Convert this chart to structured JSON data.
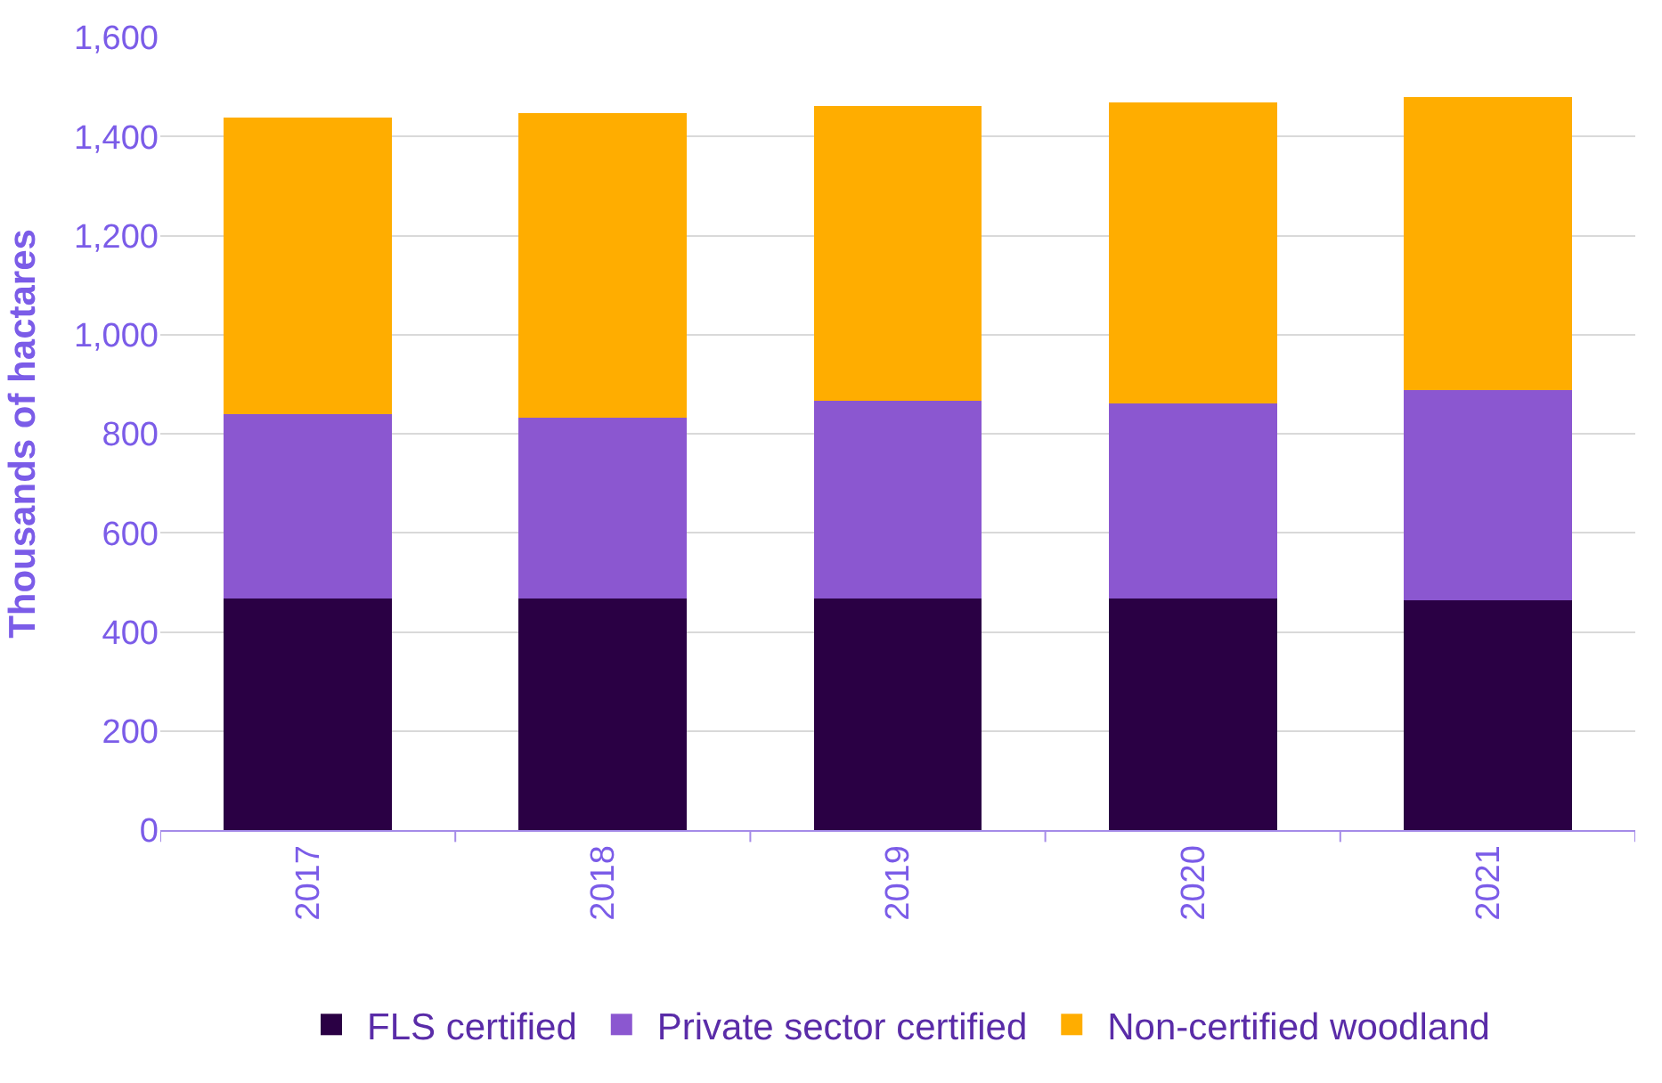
{
  "chart_data": {
    "type": "bar",
    "stacked": true,
    "ylabel": "Thousands of hactares",
    "categories": [
      "2017",
      "2018",
      "2019",
      "2020",
      "2021"
    ],
    "series": [
      {
        "name": "FLS certified",
        "color": "#2a0044",
        "values": [
          468,
          468,
          468,
          468,
          464
        ]
      },
      {
        "name": "Private sector certified",
        "color": "#8b57d0",
        "values": [
          372,
          365,
          398,
          394,
          424
        ]
      },
      {
        "name": "Non-certified woodland",
        "color": "#ffad00",
        "values": [
          599,
          614,
          595,
          607,
          591
        ]
      }
    ],
    "ylim": [
      0,
      1600
    ],
    "yticks": [
      0,
      {
        "value": 200,
        "label": "200"
      },
      {
        "value": 400,
        "label": "400"
      },
      {
        "value": 600,
        "label": "600"
      },
      {
        "value": 800,
        "label": "800"
      },
      {
        "value": 1000,
        "label": "1,000"
      },
      {
        "value": 1200,
        "label": "1,200"
      },
      {
        "value": 1400,
        "label": "1,400"
      },
      {
        "value": 1600,
        "label": "1,600"
      }
    ],
    "grid": "y",
    "legend": "bottom"
  }
}
